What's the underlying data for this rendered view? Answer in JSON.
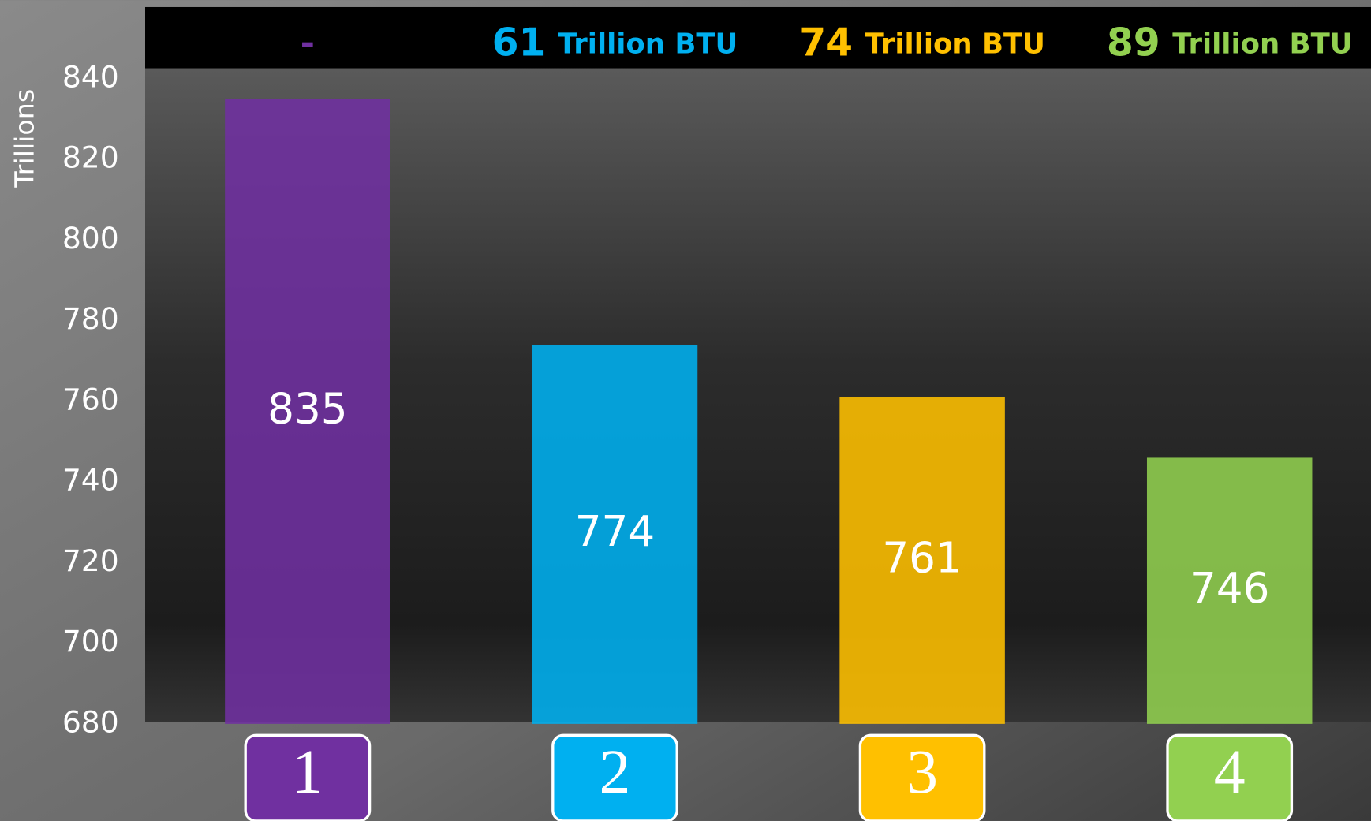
{
  "chart_data": {
    "type": "bar",
    "y_label": "Trillions",
    "categories": [
      "1",
      "2",
      "3",
      "4"
    ],
    "values": [
      835,
      774,
      761,
      746
    ],
    "colors": [
      "#7030a0",
      "#00b0f0",
      "#ffc000",
      "#92d050"
    ],
    "ylim": [
      680,
      840
    ],
    "yticks": [
      680,
      700,
      720,
      740,
      760,
      780,
      800,
      820,
      840
    ],
    "grid": false,
    "annotations": [
      {
        "label": "-"
      },
      {
        "value": 61,
        "unit": "Trillion BTU"
      },
      {
        "value": 74,
        "unit": "Trillion BTU"
      },
      {
        "value": 89,
        "unit": "Trillion BTU"
      }
    ]
  }
}
